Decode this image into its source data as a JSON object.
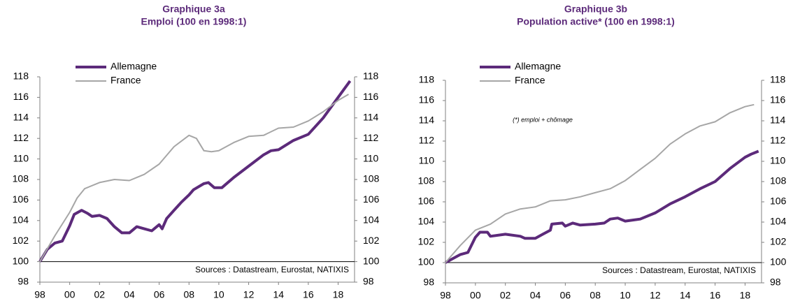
{
  "chart_data": [
    {
      "type": "line",
      "title": "Graphique 3a",
      "subtitle": "Emploi (100 en 1998:1)",
      "source": "Sources : Datastream, Eurostat, NATIXIS",
      "xlim": [
        1998,
        2019.1
      ],
      "xticks": [
        {
          "value": 1998,
          "label": "98"
        },
        {
          "value": 2000,
          "label": "00"
        },
        {
          "value": 2002,
          "label": "02"
        },
        {
          "value": 2004,
          "label": "04"
        },
        {
          "value": 2006,
          "label": "06"
        },
        {
          "value": 2008,
          "label": "08"
        },
        {
          "value": 2010,
          "label": "10"
        },
        {
          "value": 2012,
          "label": "12"
        },
        {
          "value": 2014,
          "label": "14"
        },
        {
          "value": 2016,
          "label": "16"
        },
        {
          "value": 2018,
          "label": "18"
        }
      ],
      "ylim": [
        98,
        118
      ],
      "yticks": [
        98,
        100,
        102,
        104,
        106,
        108,
        110,
        112,
        114,
        116,
        118
      ],
      "y2lim": [
        98,
        118
      ],
      "y2ticks": [
        98,
        100,
        102,
        104,
        106,
        108,
        110,
        112,
        114,
        116,
        118
      ],
      "hline": 100,
      "legend": "upper left",
      "series": [
        {
          "name": "Allemagne",
          "color": "#5c2a7a",
          "linewidth": 4,
          "x": [
            1998,
            1998.5,
            1999,
            1999.5,
            2000,
            2000.3,
            2000.8,
            2001.2,
            2001.5,
            2002,
            2002.5,
            2003,
            2003.5,
            2004,
            2004.5,
            2005,
            2005.5,
            2006,
            2006.2,
            2006.5,
            2007,
            2007.5,
            2008,
            2008.3,
            2009,
            2009.3,
            2009.7,
            2010.2,
            2011,
            2012,
            2013,
            2013.5,
            2014,
            2015,
            2016,
            2017,
            2018,
            2018.8
          ],
          "values": [
            100,
            101.2,
            101.8,
            102,
            103.5,
            104.6,
            105,
            104.7,
            104.4,
            104.5,
            104.2,
            103.4,
            102.8,
            102.8,
            103.4,
            103.2,
            103.0,
            103.6,
            103.2,
            104.2,
            105.0,
            105.8,
            106.5,
            107.0,
            107.6,
            107.7,
            107.2,
            107.2,
            108.2,
            109.3,
            110.4,
            110.8,
            110.9,
            111.8,
            112.4,
            114.0,
            116.0,
            117.6
          ]
        },
        {
          "name": "France",
          "color": "#a6a6a6",
          "linewidth": 2,
          "x": [
            1998,
            1999,
            2000,
            2000.5,
            2001,
            2002,
            2003,
            2004,
            2005,
            2006,
            2007,
            2008,
            2008.5,
            2009,
            2009.5,
            2010,
            2011,
            2012,
            2013,
            2014,
            2015,
            2016,
            2017,
            2018,
            2018.7
          ],
          "values": [
            100,
            102.5,
            104.8,
            106.2,
            107.1,
            107.7,
            108.0,
            107.9,
            108.5,
            109.5,
            111.2,
            112.3,
            112.0,
            110.8,
            110.7,
            110.8,
            111.6,
            112.2,
            112.3,
            113.0,
            113.1,
            113.7,
            114.6,
            115.7,
            116.3
          ]
        }
      ]
    },
    {
      "type": "line",
      "title": "Graphique 3b",
      "subtitle": "Population active* (100 en 1998:1)",
      "source": "Sources : Datastream, Eurostat, NATIXIS",
      "annotation": "(*) emploi + chômage",
      "xlim": [
        1998,
        2019.1
      ],
      "xticks": [
        {
          "value": 1998,
          "label": "98"
        },
        {
          "value": 2000,
          "label": "00"
        },
        {
          "value": 2002,
          "label": "02"
        },
        {
          "value": 2004,
          "label": "04"
        },
        {
          "value": 2006,
          "label": "06"
        },
        {
          "value": 2008,
          "label": "08"
        },
        {
          "value": 2010,
          "label": "10"
        },
        {
          "value": 2012,
          "label": "12"
        },
        {
          "value": 2014,
          "label": "14"
        },
        {
          "value": 2016,
          "label": "16"
        },
        {
          "value": 2018,
          "label": "18"
        }
      ],
      "ylim": [
        98,
        118
      ],
      "yticks": [
        98,
        100,
        102,
        104,
        106,
        108,
        110,
        112,
        114,
        116,
        118
      ],
      "y2lim": [
        98,
        118
      ],
      "y2ticks": [
        98,
        100,
        102,
        104,
        106,
        108,
        110,
        112,
        114,
        116,
        118
      ],
      "hline": 100,
      "legend": "upper left",
      "series": [
        {
          "name": "Allemagne",
          "color": "#5c2a7a",
          "linewidth": 4,
          "x": [
            1998,
            1999,
            1999.5,
            2000,
            2000.3,
            2000.8,
            2001,
            2002,
            2003,
            2003.3,
            2004,
            2004.5,
            2005,
            2005.1,
            2005.8,
            2006,
            2006.5,
            2007,
            2008,
            2008.6,
            2009,
            2009.5,
            2010,
            2011,
            2012,
            2013,
            2014,
            2015,
            2016,
            2017,
            2018,
            2018.4,
            2018.9
          ],
          "values": [
            100,
            100.8,
            101.0,
            102.5,
            103.0,
            103.0,
            102.6,
            102.8,
            102.6,
            102.4,
            102.4,
            102.8,
            103.2,
            103.8,
            103.9,
            103.6,
            103.9,
            103.7,
            103.8,
            103.9,
            104.3,
            104.4,
            104.1,
            104.3,
            104.9,
            105.8,
            106.5,
            107.3,
            108.0,
            109.3,
            110.4,
            110.7,
            111.0
          ]
        },
        {
          "name": "France",
          "color": "#a6a6a6",
          "linewidth": 2,
          "x": [
            1998,
            1999,
            2000,
            2001,
            2002,
            2003,
            2004,
            2005,
            2006,
            2007,
            2008,
            2009,
            2010,
            2011,
            2012,
            2013,
            2014,
            2015,
            2016,
            2017,
            2018,
            2018.6
          ],
          "values": [
            100,
            101.7,
            103.2,
            103.8,
            104.8,
            105.3,
            105.5,
            106.1,
            106.2,
            106.5,
            106.9,
            107.3,
            108.1,
            109.2,
            110.3,
            111.7,
            112.7,
            113.5,
            113.9,
            114.8,
            115.4,
            115.6
          ]
        }
      ]
    }
  ]
}
